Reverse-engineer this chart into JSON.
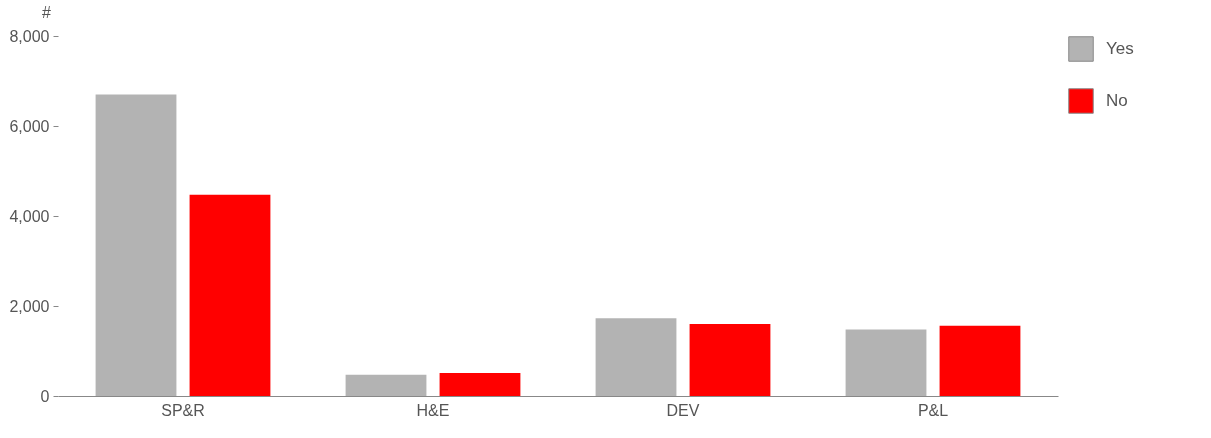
{
  "chart_data": {
    "type": "bar",
    "ylabel": "#",
    "categories": [
      "SP&R",
      "H&E",
      "DEV",
      "P&L"
    ],
    "series": [
      {
        "name": "Yes",
        "color": "#b3b3b3",
        "values": [
          6700,
          470,
          1730,
          1480
        ]
      },
      {
        "name": "No",
        "color": "#ff0000",
        "values": [
          4470,
          510,
          1600,
          1560
        ]
      }
    ],
    "ylim": [
      0,
      8000
    ],
    "yticks": [
      0,
      {
        "value": 2000,
        "label": "2,000"
      },
      {
        "value": 4000,
        "label": "4,000"
      },
      {
        "value": 6000,
        "label": "6,000"
      },
      {
        "value": 8000,
        "label": "8,000"
      }
    ],
    "grid": false,
    "legend": "top right"
  }
}
